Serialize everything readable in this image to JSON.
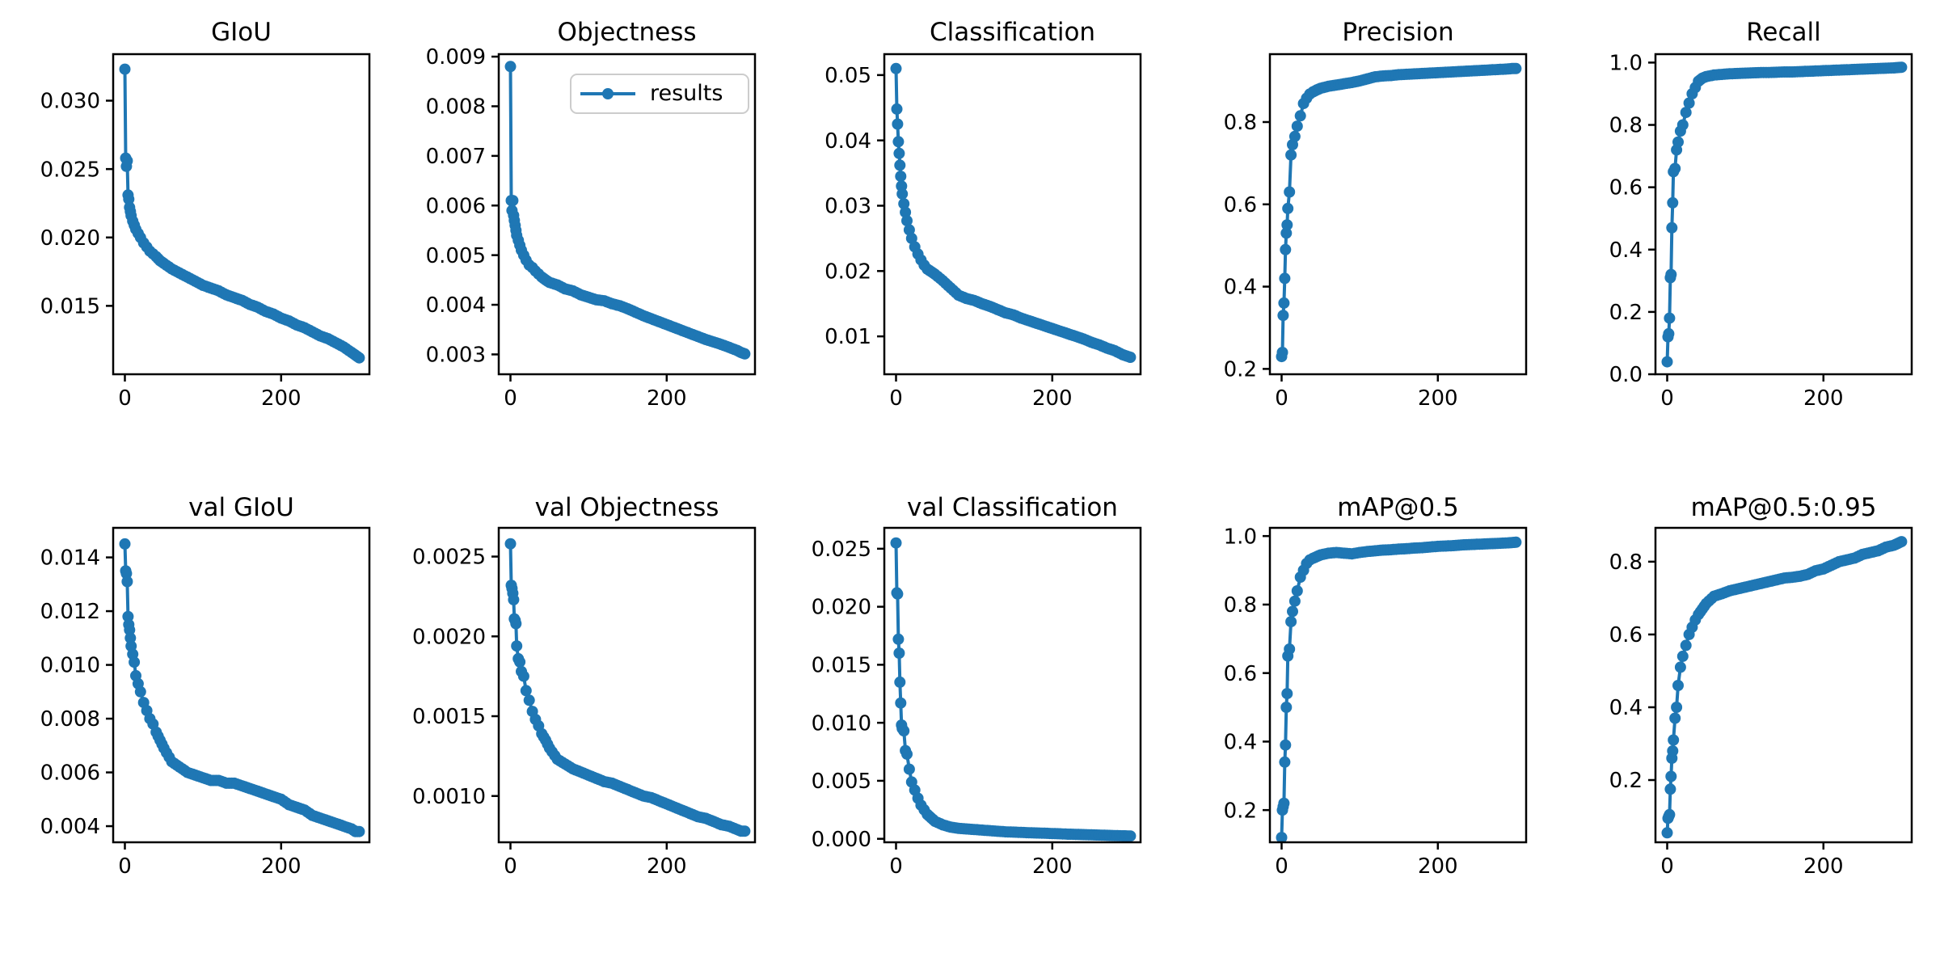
{
  "figure": {
    "background": "#ffffff",
    "accent_color": "#1f77b4",
    "axis_color": "#000000"
  },
  "legend": {
    "label": "results"
  },
  "chart_data": [
    {
      "id": "giou",
      "type": "line",
      "title": "GIoU",
      "row": 0,
      "col": 0,
      "xlim": [
        -15,
        313
      ],
      "ylim": [
        0.01,
        0.0334
      ],
      "xtick_values": [
        0,
        200
      ],
      "xtick_labels": [
        "0",
        "200"
      ],
      "ytick_values": [
        0.015,
        0.02,
        0.025,
        0.03
      ],
      "ytick_labels": [
        "0.015",
        "0.020",
        "0.025",
        "0.030"
      ],
      "x": [
        0,
        1,
        2,
        3,
        4,
        5,
        6,
        7,
        8,
        10,
        12,
        14,
        17,
        20,
        24,
        28,
        32,
        36,
        40,
        45,
        50,
        60,
        70,
        80,
        90,
        100,
        110,
        120,
        130,
        140,
        150,
        160,
        170,
        180,
        190,
        200,
        210,
        220,
        230,
        240,
        250,
        260,
        270,
        280,
        290,
        295,
        300
      ],
      "y": [
        0.0323,
        0.0258,
        0.0252,
        0.0256,
        0.0231,
        0.0228,
        0.0222,
        0.0219,
        0.0216,
        0.0212,
        0.0209,
        0.0206,
        0.0203,
        0.02,
        0.0196,
        0.0193,
        0.019,
        0.0188,
        0.0186,
        0.0183,
        0.0181,
        0.0177,
        0.0174,
        0.0171,
        0.0168,
        0.0165,
        0.0163,
        0.0161,
        0.0158,
        0.0156,
        0.0154,
        0.0151,
        0.0149,
        0.0146,
        0.0144,
        0.0141,
        0.0139,
        0.0136,
        0.0134,
        0.0131,
        0.0128,
        0.0126,
        0.0123,
        0.012,
        0.0116,
        0.0114,
        0.0112
      ]
    },
    {
      "id": "objectness",
      "type": "line",
      "title": "Objectness",
      "row": 0,
      "col": 1,
      "legend": "results",
      "xlim": [
        -15,
        313
      ],
      "ylim": [
        0.0026,
        0.00905
      ],
      "xtick_values": [
        0,
        200
      ],
      "xtick_labels": [
        "0",
        "200"
      ],
      "ytick_values": [
        0.003,
        0.004,
        0.005,
        0.006,
        0.007,
        0.008,
        0.009
      ],
      "ytick_labels": [
        "0.003",
        "0.004",
        "0.005",
        "0.006",
        "0.007",
        "0.008",
        "0.009"
      ],
      "x": [
        0,
        1,
        2,
        3,
        4,
        5,
        6,
        7,
        8,
        10,
        12,
        14,
        17,
        20,
        24,
        28,
        32,
        36,
        40,
        45,
        50,
        60,
        70,
        80,
        90,
        100,
        110,
        120,
        130,
        140,
        150,
        160,
        170,
        180,
        190,
        200,
        210,
        220,
        230,
        240,
        250,
        260,
        270,
        280,
        290,
        295,
        300
      ],
      "y": [
        0.0088,
        0.0061,
        0.0059,
        0.0061,
        0.0058,
        0.0057,
        0.0056,
        0.0055,
        0.0054,
        0.0053,
        0.0052,
        0.0051,
        0.005,
        0.0049,
        0.0048,
        0.00475,
        0.00468,
        0.00462,
        0.00456,
        0.0045,
        0.00445,
        0.0044,
        0.00432,
        0.00428,
        0.0042,
        0.00415,
        0.0041,
        0.00408,
        0.00402,
        0.00398,
        0.00392,
        0.00385,
        0.00378,
        0.00372,
        0.00366,
        0.0036,
        0.00354,
        0.00348,
        0.00342,
        0.00336,
        0.0033,
        0.00325,
        0.0032,
        0.00314,
        0.00308,
        0.00304,
        0.00301
      ]
    },
    {
      "id": "classification",
      "type": "line",
      "title": "Classification",
      "row": 0,
      "col": 2,
      "xlim": [
        -15,
        313
      ],
      "ylim": [
        0.0042,
        0.0532
      ],
      "xtick_values": [
        0,
        200
      ],
      "xtick_labels": [
        "0",
        "200"
      ],
      "ytick_values": [
        0.01,
        0.02,
        0.03,
        0.04,
        0.05
      ],
      "ytick_labels": [
        "0.01",
        "0.02",
        "0.03",
        "0.04",
        "0.05"
      ],
      "x": [
        0,
        1,
        2,
        3,
        4,
        5,
        6,
        7,
        8,
        10,
        12,
        14,
        17,
        20,
        24,
        28,
        32,
        36,
        40,
        45,
        50,
        60,
        70,
        80,
        90,
        100,
        110,
        120,
        130,
        140,
        150,
        160,
        170,
        180,
        190,
        200,
        210,
        220,
        230,
        240,
        250,
        260,
        270,
        280,
        290,
        295,
        300
      ],
      "y": [
        0.051,
        0.0448,
        0.0425,
        0.0398,
        0.038,
        0.0362,
        0.0345,
        0.033,
        0.0318,
        0.0303,
        0.029,
        0.0277,
        0.0263,
        0.025,
        0.0237,
        0.0226,
        0.0217,
        0.0209,
        0.0203,
        0.0199,
        0.0195,
        0.0185,
        0.0174,
        0.0163,
        0.0158,
        0.0155,
        0.015,
        0.0146,
        0.0141,
        0.0136,
        0.0133,
        0.0128,
        0.0124,
        0.012,
        0.0116,
        0.0112,
        0.0108,
        0.0104,
        0.01,
        0.0096,
        0.0091,
        0.0087,
        0.0082,
        0.0078,
        0.0072,
        0.007,
        0.0068
      ]
    },
    {
      "id": "precision",
      "type": "line",
      "title": "Precision",
      "row": 0,
      "col": 3,
      "xlim": [
        -15,
        313
      ],
      "ylim": [
        0.187,
        0.965
      ],
      "xtick_values": [
        0,
        200
      ],
      "xtick_labels": [
        "0",
        "200"
      ],
      "ytick_values": [
        0.2,
        0.4,
        0.6,
        0.8
      ],
      "ytick_labels": [
        "0.2",
        "0.4",
        "0.6",
        "0.8"
      ],
      "x": [
        0,
        1,
        2,
        3,
        4,
        5,
        6,
        7,
        8,
        10,
        12,
        14,
        17,
        20,
        24,
        28,
        32,
        36,
        40,
        45,
        50,
        60,
        70,
        80,
        90,
        100,
        110,
        120,
        130,
        140,
        150,
        160,
        170,
        180,
        190,
        200,
        210,
        220,
        230,
        240,
        250,
        260,
        270,
        280,
        290,
        295,
        300
      ],
      "y": [
        0.23,
        0.24,
        0.33,
        0.36,
        0.42,
        0.49,
        0.53,
        0.55,
        0.59,
        0.63,
        0.72,
        0.745,
        0.765,
        0.79,
        0.815,
        0.845,
        0.858,
        0.868,
        0.873,
        0.878,
        0.882,
        0.887,
        0.89,
        0.893,
        0.896,
        0.9,
        0.905,
        0.91,
        0.912,
        0.913,
        0.915,
        0.916,
        0.917,
        0.918,
        0.919,
        0.92,
        0.921,
        0.922,
        0.923,
        0.924,
        0.925,
        0.926,
        0.927,
        0.928,
        0.929,
        0.93,
        0.93
      ]
    },
    {
      "id": "recall",
      "type": "line",
      "title": "Recall",
      "row": 0,
      "col": 4,
      "xlim": [
        -15,
        313
      ],
      "ylim": [
        0.0,
        1.027
      ],
      "xtick_values": [
        0,
        200
      ],
      "xtick_labels": [
        "0",
        "200"
      ],
      "ytick_values": [
        0.0,
        0.2,
        0.4,
        0.6,
        0.8,
        1.0
      ],
      "ytick_labels": [
        "0.0",
        "0.2",
        "0.4",
        "0.6",
        "0.8",
        "1.0"
      ],
      "x": [
        0,
        1,
        2,
        3,
        4,
        5,
        6,
        7,
        8,
        10,
        12,
        14,
        17,
        20,
        24,
        28,
        32,
        36,
        40,
        45,
        50,
        60,
        70,
        80,
        90,
        100,
        110,
        120,
        130,
        140,
        150,
        160,
        170,
        180,
        190,
        200,
        210,
        220,
        230,
        240,
        250,
        260,
        270,
        280,
        290,
        295,
        300
      ],
      "y": [
        0.04,
        0.12,
        0.13,
        0.18,
        0.31,
        0.32,
        0.47,
        0.55,
        0.65,
        0.66,
        0.72,
        0.745,
        0.78,
        0.8,
        0.84,
        0.87,
        0.9,
        0.92,
        0.94,
        0.95,
        0.955,
        0.96,
        0.962,
        0.964,
        0.965,
        0.966,
        0.967,
        0.968,
        0.968,
        0.969,
        0.97,
        0.97,
        0.971,
        0.972,
        0.973,
        0.974,
        0.975,
        0.976,
        0.977,
        0.978,
        0.979,
        0.98,
        0.981,
        0.982,
        0.983,
        0.984,
        0.985
      ]
    },
    {
      "id": "val-giou",
      "type": "line",
      "title": "val GIoU",
      "row": 1,
      "col": 0,
      "xlim": [
        -15,
        313
      ],
      "ylim": [
        0.0034,
        0.0151
      ],
      "xtick_values": [
        0,
        200
      ],
      "xtick_labels": [
        "0",
        "200"
      ],
      "ytick_values": [
        0.004,
        0.006,
        0.008,
        0.01,
        0.012,
        0.014
      ],
      "ytick_labels": [
        "0.004",
        "0.006",
        "0.008",
        "0.010",
        "0.012",
        "0.014"
      ],
      "x": [
        0,
        1,
        2,
        3,
        4,
        5,
        6,
        7,
        8,
        10,
        12,
        14,
        17,
        20,
        24,
        28,
        32,
        36,
        40,
        45,
        50,
        60,
        70,
        80,
        90,
        100,
        110,
        120,
        130,
        140,
        150,
        160,
        170,
        180,
        190,
        200,
        210,
        220,
        230,
        240,
        250,
        260,
        270,
        280,
        290,
        295,
        300
      ],
      "y": [
        0.0145,
        0.0135,
        0.0134,
        0.0131,
        0.0118,
        0.0115,
        0.0113,
        0.011,
        0.0107,
        0.0104,
        0.0101,
        0.0096,
        0.0093,
        0.009,
        0.0086,
        0.0083,
        0.008,
        0.0078,
        0.0075,
        0.0072,
        0.0069,
        0.0064,
        0.0062,
        0.006,
        0.0059,
        0.0058,
        0.0057,
        0.0057,
        0.0056,
        0.0056,
        0.0055,
        0.0054,
        0.0053,
        0.0052,
        0.0051,
        0.005,
        0.0048,
        0.0047,
        0.0046,
        0.0044,
        0.0043,
        0.0042,
        0.0041,
        0.004,
        0.0039,
        0.0038,
        0.0038
      ]
    },
    {
      "id": "val-objectness",
      "type": "line",
      "title": "val Objectness",
      "row": 1,
      "col": 1,
      "xlim": [
        -15,
        313
      ],
      "ylim": [
        0.00071,
        0.00268
      ],
      "xtick_values": [
        0,
        200
      ],
      "xtick_labels": [
        "0",
        "200"
      ],
      "ytick_values": [
        0.001,
        0.0015,
        0.002,
        0.0025
      ],
      "ytick_labels": [
        "0.0010",
        "0.0015",
        "0.0020",
        "0.0025"
      ],
      "x": [
        0,
        1,
        2,
        3,
        4,
        5,
        6,
        7,
        8,
        10,
        12,
        14,
        17,
        20,
        24,
        28,
        32,
        36,
        40,
        45,
        50,
        60,
        70,
        80,
        90,
        100,
        110,
        120,
        130,
        140,
        150,
        160,
        170,
        180,
        190,
        200,
        210,
        220,
        230,
        240,
        250,
        260,
        270,
        280,
        290,
        295,
        300
      ],
      "y": [
        0.00258,
        0.00232,
        0.0023,
        0.00227,
        0.00223,
        0.00211,
        0.0021,
        0.00208,
        0.00194,
        0.00186,
        0.00184,
        0.00178,
        0.00175,
        0.00166,
        0.0016,
        0.00153,
        0.00148,
        0.00144,
        0.00139,
        0.00135,
        0.0013,
        0.00123,
        0.0012,
        0.00117,
        0.00115,
        0.00113,
        0.00111,
        0.00109,
        0.00108,
        0.00106,
        0.00104,
        0.00102,
        0.001,
        0.00099,
        0.00097,
        0.00095,
        0.00093,
        0.00091,
        0.00089,
        0.00087,
        0.00086,
        0.00084,
        0.00082,
        0.00081,
        0.00079,
        0.00078,
        0.00078
      ]
    },
    {
      "id": "val-classification",
      "type": "line",
      "title": "val Classification",
      "row": 1,
      "col": 2,
      "xlim": [
        -15,
        313
      ],
      "ylim": [
        -0.0003,
        0.0268
      ],
      "xtick_values": [
        0,
        200
      ],
      "xtick_labels": [
        "0",
        "200"
      ],
      "ytick_values": [
        0.0,
        0.005,
        0.01,
        0.015,
        0.02,
        0.025
      ],
      "ytick_labels": [
        "0.000",
        "0.005",
        "0.010",
        "0.015",
        "0.020",
        "0.025"
      ],
      "x": [
        0,
        1,
        2,
        3,
        4,
        5,
        6,
        7,
        8,
        10,
        12,
        14,
        17,
        20,
        24,
        28,
        32,
        36,
        40,
        45,
        50,
        60,
        70,
        80,
        90,
        100,
        110,
        120,
        130,
        140,
        150,
        160,
        170,
        180,
        190,
        200,
        210,
        220,
        230,
        240,
        250,
        260,
        270,
        280,
        290,
        295,
        300
      ],
      "y": [
        0.0255,
        0.0212,
        0.0211,
        0.0172,
        0.016,
        0.0135,
        0.0117,
        0.0098,
        0.0095,
        0.0093,
        0.0076,
        0.0073,
        0.006,
        0.0049,
        0.0042,
        0.0035,
        0.0029,
        0.0025,
        0.0021,
        0.0018,
        0.0015,
        0.0012,
        0.001,
        0.0009,
        0.00085,
        0.0008,
        0.00075,
        0.0007,
        0.00065,
        0.0006,
        0.00058,
        0.00055,
        0.00052,
        0.0005,
        0.00048,
        0.00045,
        0.00043,
        0.0004,
        0.00038,
        0.00036,
        0.00034,
        0.00032,
        0.0003,
        0.00028,
        0.00026,
        0.00025,
        0.00024
      ]
    },
    {
      "id": "map05",
      "type": "line",
      "title": "mAP@0.5",
      "row": 1,
      "col": 3,
      "xlim": [
        -15,
        313
      ],
      "ylim": [
        0.106,
        1.024
      ],
      "xtick_values": [
        0,
        200
      ],
      "xtick_labels": [
        "0",
        "200"
      ],
      "ytick_values": [
        0.2,
        0.4,
        0.6,
        0.8,
        1.0
      ],
      "ytick_labels": [
        "0.2",
        "0.4",
        "0.6",
        "0.8",
        "1.0"
      ],
      "x": [
        0,
        1,
        2,
        3,
        4,
        5,
        6,
        7,
        8,
        10,
        12,
        14,
        17,
        20,
        24,
        28,
        32,
        36,
        40,
        45,
        50,
        60,
        70,
        80,
        90,
        100,
        110,
        120,
        130,
        140,
        150,
        160,
        170,
        180,
        190,
        200,
        210,
        220,
        230,
        240,
        250,
        260,
        270,
        280,
        290,
        295,
        300
      ],
      "y": [
        0.12,
        0.2,
        0.21,
        0.22,
        0.34,
        0.39,
        0.5,
        0.54,
        0.65,
        0.67,
        0.75,
        0.78,
        0.81,
        0.84,
        0.88,
        0.9,
        0.92,
        0.93,
        0.935,
        0.94,
        0.945,
        0.95,
        0.952,
        0.95,
        0.948,
        0.952,
        0.955,
        0.957,
        0.959,
        0.96,
        0.962,
        0.963,
        0.965,
        0.966,
        0.968,
        0.97,
        0.971,
        0.972,
        0.974,
        0.975,
        0.976,
        0.977,
        0.978,
        0.979,
        0.98,
        0.981,
        0.982
      ]
    },
    {
      "id": "map05-095",
      "type": "line",
      "title": "mAP@0.5:0.95",
      "row": 1,
      "col": 4,
      "xlim": [
        -15,
        313
      ],
      "ylim": [
        0.029,
        0.893
      ],
      "xtick_values": [
        0,
        200
      ],
      "xtick_labels": [
        "0",
        "200"
      ],
      "ytick_values": [
        0.2,
        0.4,
        0.6,
        0.8
      ],
      "ytick_labels": [
        "0.2",
        "0.4",
        "0.6",
        "0.8"
      ],
      "x": [
        0,
        1,
        2,
        3,
        4,
        5,
        6,
        7,
        8,
        10,
        12,
        14,
        17,
        20,
        24,
        28,
        32,
        36,
        40,
        45,
        50,
        60,
        70,
        80,
        90,
        100,
        110,
        120,
        130,
        140,
        150,
        160,
        170,
        180,
        190,
        200,
        210,
        220,
        230,
        240,
        250,
        260,
        270,
        280,
        290,
        295,
        300
      ],
      "y": [
        0.055,
        0.095,
        0.1,
        0.105,
        0.175,
        0.21,
        0.26,
        0.28,
        0.31,
        0.37,
        0.4,
        0.46,
        0.51,
        0.54,
        0.57,
        0.6,
        0.62,
        0.64,
        0.655,
        0.67,
        0.685,
        0.705,
        0.712,
        0.72,
        0.725,
        0.73,
        0.735,
        0.74,
        0.745,
        0.75,
        0.755,
        0.757,
        0.76,
        0.765,
        0.775,
        0.78,
        0.79,
        0.8,
        0.805,
        0.81,
        0.82,
        0.825,
        0.83,
        0.84,
        0.845,
        0.85,
        0.855
      ]
    }
  ]
}
